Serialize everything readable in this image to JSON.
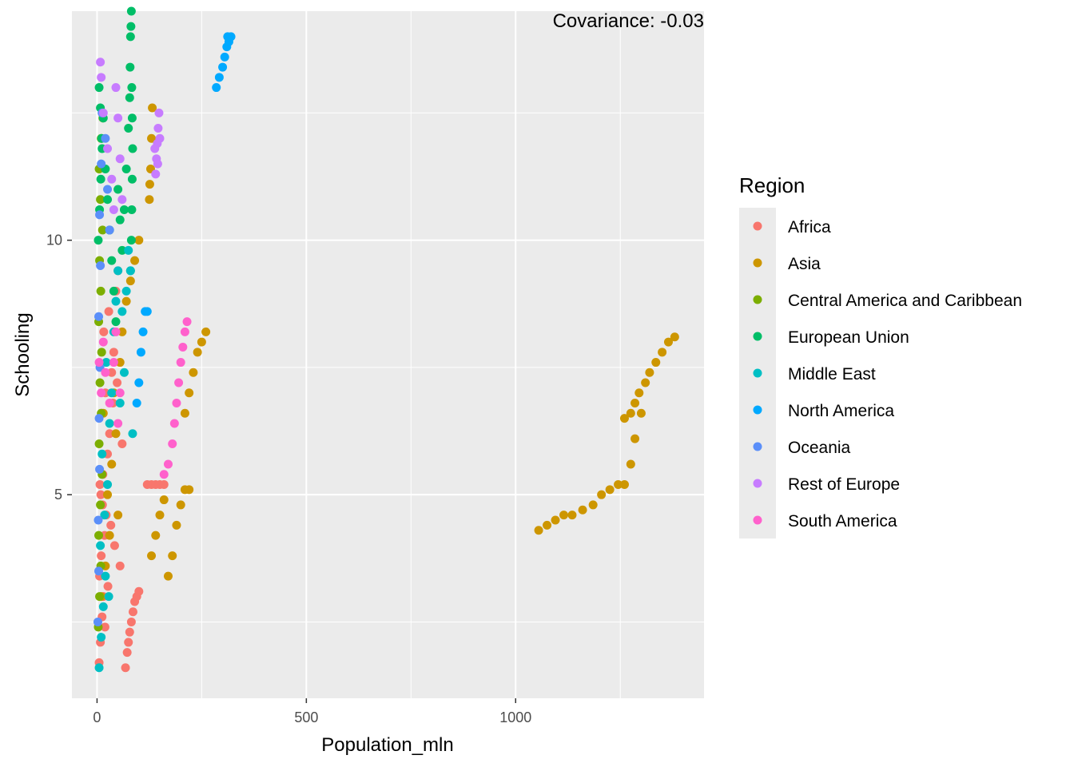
{
  "chart_data": {
    "type": "scatter",
    "annotation": "Covariance: -0.03",
    "xlabel": "Population_mln",
    "ylabel": "Schooling",
    "xlim": [
      -60,
      1450
    ],
    "ylim": [
      1.0,
      14.5
    ],
    "x_ticks": [
      0,
      500,
      1000
    ],
    "x_minor": [
      250,
      750,
      1250
    ],
    "y_ticks": [
      5,
      10
    ],
    "y_minor": [
      2.5,
      7.5,
      12.5
    ],
    "grid": true,
    "legend": {
      "title": "Region",
      "position": "right",
      "entries": [
        {
          "name": "Africa",
          "color": "#F8766D"
        },
        {
          "name": "Asia",
          "color": "#CD9600"
        },
        {
          "name": "Central America and Caribbean",
          "color": "#7CAE00"
        },
        {
          "name": "European Union",
          "color": "#00BE67"
        },
        {
          "name": "Middle East",
          "color": "#00BFC4"
        },
        {
          "name": "North America",
          "color": "#00A9FF"
        },
        {
          "name": "Oceania",
          "color": "#5B8FF9"
        },
        {
          "name": "Rest of Europe",
          "color": "#C77CFF"
        },
        {
          "name": "South America",
          "color": "#FF61CC"
        }
      ]
    },
    "series": [
      {
        "name": "Africa",
        "color": "#F8766D",
        "points": [
          [
            5,
            1.7
          ],
          [
            8,
            2.1
          ],
          [
            12,
            2.6
          ],
          [
            15,
            3.0
          ],
          [
            6,
            3.4
          ],
          [
            10,
            3.8
          ],
          [
            18,
            4.2
          ],
          [
            22,
            4.6
          ],
          [
            9,
            5.0
          ],
          [
            14,
            5.4
          ],
          [
            25,
            5.8
          ],
          [
            30,
            6.2
          ],
          [
            11,
            6.6
          ],
          [
            20,
            7.0
          ],
          [
            35,
            7.4
          ],
          [
            40,
            7.8
          ],
          [
            16,
            8.2
          ],
          [
            28,
            8.6
          ],
          [
            45,
            9.0
          ],
          [
            50,
            9.4
          ],
          [
            7,
            5.2
          ],
          [
            13,
            4.8
          ],
          [
            33,
            4.4
          ],
          [
            42,
            4.0
          ],
          [
            55,
            3.6
          ],
          [
            60,
            6.0
          ],
          [
            38,
            6.8
          ],
          [
            48,
            7.2
          ],
          [
            26,
            3.2
          ],
          [
            19,
            2.4
          ],
          [
            68,
            1.6
          ],
          [
            72,
            1.9
          ],
          [
            75,
            2.1
          ],
          [
            78,
            2.3
          ],
          [
            82,
            2.5
          ],
          [
            86,
            2.7
          ],
          [
            90,
            2.9
          ],
          [
            95,
            3.0
          ],
          [
            100,
            3.1
          ],
          [
            120,
            5.2
          ],
          [
            130,
            5.2
          ],
          [
            140,
            5.2
          ],
          [
            150,
            5.2
          ],
          [
            160,
            5.2
          ]
        ]
      },
      {
        "name": "Asia",
        "color": "#CD9600",
        "points": [
          [
            10,
            3.0
          ],
          [
            20,
            3.6
          ],
          [
            30,
            4.2
          ],
          [
            25,
            5.0
          ],
          [
            35,
            5.6
          ],
          [
            45,
            6.2
          ],
          [
            40,
            7.0
          ],
          [
            55,
            7.6
          ],
          [
            60,
            8.2
          ],
          [
            70,
            8.8
          ],
          [
            80,
            9.2
          ],
          [
            90,
            9.6
          ],
          [
            100,
            10.0
          ],
          [
            15,
            6.6
          ],
          [
            50,
            4.6
          ],
          [
            125,
            10.8
          ],
          [
            128,
            11.4
          ],
          [
            130,
            12.0
          ],
          [
            132,
            12.6
          ],
          [
            126,
            11.1
          ],
          [
            130,
            3.8
          ],
          [
            140,
            4.2
          ],
          [
            150,
            4.6
          ],
          [
            160,
            4.9
          ],
          [
            170,
            3.4
          ],
          [
            180,
            3.8
          ],
          [
            190,
            4.4
          ],
          [
            200,
            4.8
          ],
          [
            210,
            5.1
          ],
          [
            220,
            5.1
          ],
          [
            210,
            6.6
          ],
          [
            220,
            7.0
          ],
          [
            230,
            7.4
          ],
          [
            240,
            7.8
          ],
          [
            250,
            8.0
          ],
          [
            260,
            8.2
          ],
          [
            1055,
            4.3
          ],
          [
            1075,
            4.4
          ],
          [
            1095,
            4.5
          ],
          [
            1115,
            4.6
          ],
          [
            1135,
            4.6
          ],
          [
            1160,
            4.7
          ],
          [
            1185,
            4.8
          ],
          [
            1205,
            5.0
          ],
          [
            1225,
            5.1
          ],
          [
            1245,
            5.2
          ],
          [
            1260,
            5.2
          ],
          [
            1275,
            5.6
          ],
          [
            1285,
            6.1
          ],
          [
            1300,
            6.6
          ],
          [
            1260,
            6.5
          ],
          [
            1275,
            6.6
          ],
          [
            1285,
            6.8
          ],
          [
            1295,
            7.0
          ],
          [
            1310,
            7.2
          ],
          [
            1320,
            7.4
          ],
          [
            1335,
            7.6
          ],
          [
            1350,
            7.8
          ],
          [
            1365,
            8.0
          ],
          [
            1380,
            8.1
          ]
        ]
      },
      {
        "name": "Central America and Caribbean",
        "color": "#7CAE00",
        "points": [
          [
            3,
            2.4
          ],
          [
            6,
            3.0
          ],
          [
            9,
            3.6
          ],
          [
            4,
            4.2
          ],
          [
            8,
            4.8
          ],
          [
            12,
            5.4
          ],
          [
            5,
            6.0
          ],
          [
            10,
            6.6
          ],
          [
            7,
            7.2
          ],
          [
            11,
            7.8
          ],
          [
            4,
            8.4
          ],
          [
            9,
            9.0
          ],
          [
            6,
            9.6
          ],
          [
            13,
            10.2
          ],
          [
            8,
            10.8
          ],
          [
            5,
            11.4
          ],
          [
            10,
            12.0
          ],
          [
            14,
            12.4
          ]
        ]
      },
      {
        "name": "European Union",
        "color": "#00BE67",
        "points": [
          [
            3,
            10.0
          ],
          [
            6,
            10.6
          ],
          [
            9,
            11.2
          ],
          [
            12,
            11.8
          ],
          [
            15,
            12.4
          ],
          [
            5,
            13.0
          ],
          [
            8,
            12.6
          ],
          [
            11,
            12.0
          ],
          [
            20,
            11.4
          ],
          [
            25,
            10.8
          ],
          [
            30,
            10.2
          ],
          [
            35,
            9.6
          ],
          [
            40,
            9.0
          ],
          [
            45,
            8.4
          ],
          [
            50,
            11.0
          ],
          [
            55,
            10.4
          ],
          [
            60,
            9.8
          ],
          [
            65,
            10.6
          ],
          [
            70,
            11.4
          ],
          [
            75,
            12.2
          ],
          [
            78,
            12.8
          ],
          [
            79,
            13.4
          ],
          [
            80,
            14.0
          ],
          [
            82,
            14.5
          ],
          [
            81,
            14.2
          ],
          [
            83,
            13.0
          ],
          [
            84,
            12.4
          ],
          [
            85,
            11.8
          ],
          [
            84,
            11.2
          ],
          [
            83,
            10.6
          ],
          [
            82,
            10.0
          ],
          [
            80,
            9.4
          ]
        ]
      },
      {
        "name": "Middle East",
        "color": "#00BFC4",
        "points": [
          [
            5,
            1.6
          ],
          [
            10,
            2.2
          ],
          [
            15,
            2.8
          ],
          [
            20,
            3.4
          ],
          [
            8,
            4.0
          ],
          [
            18,
            4.6
          ],
          [
            25,
            5.2
          ],
          [
            12,
            5.8
          ],
          [
            30,
            6.4
          ],
          [
            35,
            7.0
          ],
          [
            22,
            7.6
          ],
          [
            40,
            8.2
          ],
          [
            45,
            8.8
          ],
          [
            50,
            9.4
          ],
          [
            28,
            3.0
          ],
          [
            60,
            8.6
          ],
          [
            70,
            9.0
          ],
          [
            80,
            9.4
          ],
          [
            75,
            9.8
          ],
          [
            65,
            7.4
          ],
          [
            55,
            6.8
          ],
          [
            85,
            6.2
          ]
        ]
      },
      {
        "name": "North America",
        "color": "#00A9FF",
        "points": [
          [
            95,
            6.8
          ],
          [
            100,
            7.2
          ],
          [
            105,
            7.8
          ],
          [
            110,
            8.2
          ],
          [
            115,
            8.6
          ],
          [
            120,
            8.6
          ],
          [
            285,
            13.0
          ],
          [
            292,
            13.2
          ],
          [
            300,
            13.4
          ],
          [
            305,
            13.6
          ],
          [
            310,
            13.8
          ],
          [
            315,
            13.9
          ],
          [
            320,
            14.0
          ],
          [
            312,
            14.0
          ]
        ]
      },
      {
        "name": "Oceania",
        "color": "#5B8FF9",
        "points": [
          [
            2,
            2.5
          ],
          [
            4,
            3.5
          ],
          [
            3,
            4.5
          ],
          [
            6,
            5.5
          ],
          [
            5,
            6.5
          ],
          [
            7,
            7.5
          ],
          [
            4,
            8.5
          ],
          [
            8,
            9.5
          ],
          [
            6,
            10.5
          ],
          [
            10,
            11.5
          ],
          [
            12,
            12.5
          ],
          [
            20,
            12.0
          ],
          [
            25,
            11.0
          ],
          [
            30,
            10.2
          ]
        ]
      },
      {
        "name": "Rest of Europe",
        "color": "#C77CFF",
        "points": [
          [
            8,
            13.5
          ],
          [
            10,
            13.2
          ],
          [
            15,
            12.5
          ],
          [
            25,
            11.8
          ],
          [
            35,
            11.2
          ],
          [
            40,
            10.6
          ],
          [
            45,
            13.0
          ],
          [
            50,
            12.4
          ],
          [
            55,
            11.6
          ],
          [
            60,
            10.8
          ],
          [
            140,
            11.3
          ],
          [
            142,
            11.6
          ],
          [
            144,
            11.9
          ],
          [
            146,
            12.2
          ],
          [
            148,
            12.5
          ],
          [
            150,
            12.0
          ],
          [
            145,
            11.5
          ],
          [
            138,
            11.8
          ]
        ]
      },
      {
        "name": "South America",
        "color": "#FF61CC",
        "points": [
          [
            5,
            7.6
          ],
          [
            10,
            7.0
          ],
          [
            15,
            8.0
          ],
          [
            20,
            7.4
          ],
          [
            30,
            6.8
          ],
          [
            40,
            7.6
          ],
          [
            45,
            8.2
          ],
          [
            50,
            6.4
          ],
          [
            55,
            7.0
          ],
          [
            160,
            5.4
          ],
          [
            170,
            5.6
          ],
          [
            180,
            6.0
          ],
          [
            185,
            6.4
          ],
          [
            190,
            6.8
          ],
          [
            195,
            7.2
          ],
          [
            200,
            7.6
          ],
          [
            205,
            7.9
          ],
          [
            210,
            8.2
          ],
          [
            215,
            8.4
          ]
        ]
      }
    ]
  }
}
